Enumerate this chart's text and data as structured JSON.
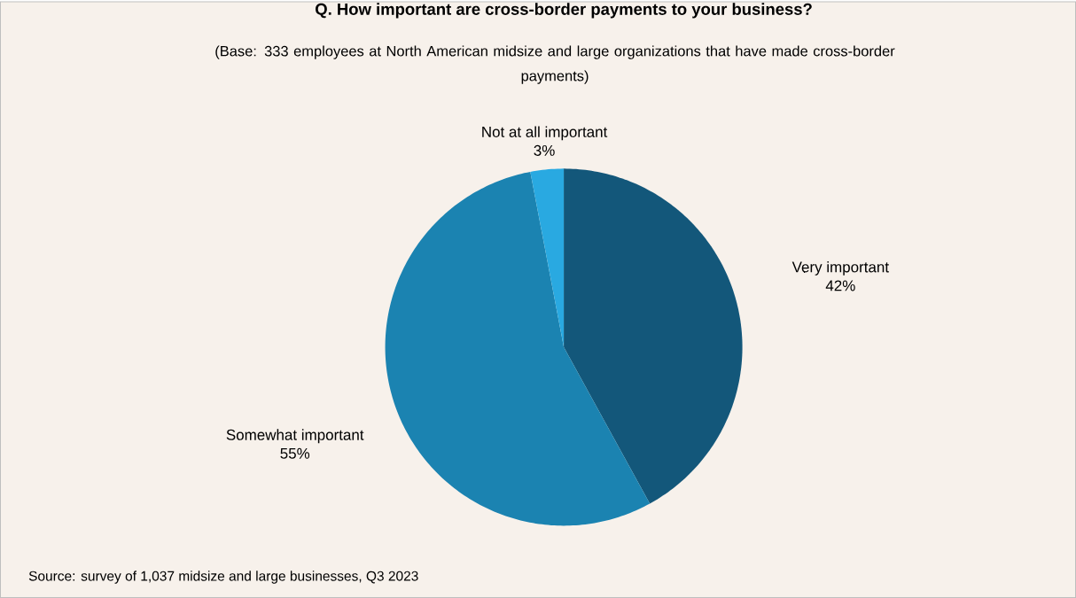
{
  "chart_data": {
    "type": "pie",
    "title": "Q. How important are cross-border payments to your business?",
    "subtitle": "(Base: 333 employees at North American midsize and large organizations that have made cross-border payments)",
    "categories": [
      "Very important",
      "Somewhat important",
      "Not at all important"
    ],
    "values": [
      42,
      55,
      3
    ],
    "colors": [
      "#13577a",
      "#1b83b1",
      "#29a9e1"
    ],
    "value_labels": [
      "42%",
      "55%",
      "3%"
    ],
    "annotations": [
      "Source: survey of 1,037 midsize and large businesses, Q3 2023"
    ]
  }
}
